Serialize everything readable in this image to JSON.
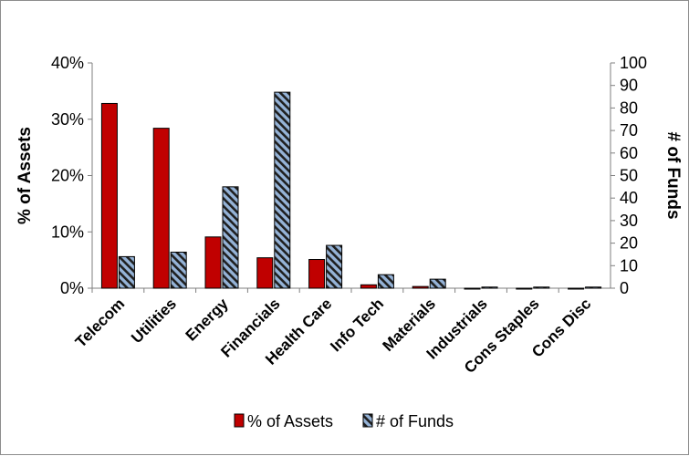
{
  "chart_data": {
    "type": "bar",
    "categories": [
      "Telecom",
      "Utilities",
      "Energy",
      "Financials",
      "Health Care",
      "Info Tech",
      "Materials",
      "Industrials",
      "Cons Staples",
      "Cons Disc"
    ],
    "series": [
      {
        "name": "% of Assets",
        "axis": "left",
        "color": "#c00000",
        "values": [
          32.8,
          28.4,
          9.1,
          5.4,
          5.1,
          0.6,
          0.3,
          0.0,
          0.0,
          0.0
        ]
      },
      {
        "name": "# of Funds",
        "axis": "right",
        "color": "#95b3d7",
        "pattern": "diagonal-hatch",
        "values": [
          14,
          16,
          45,
          87,
          19,
          6,
          4,
          0.5,
          0.5,
          0.5
        ]
      }
    ],
    "left_axis": {
      "label": "% of Assets",
      "range": [
        0,
        40
      ],
      "ticks": [
        0,
        10,
        20,
        30,
        40
      ],
      "tick_labels": [
        "0%",
        "10%",
        "20%",
        "30%",
        "40%"
      ]
    },
    "right_axis": {
      "label": "# of Funds",
      "range": [
        0,
        100
      ],
      "ticks": [
        0,
        10,
        20,
        30,
        40,
        50,
        60,
        70,
        80,
        90,
        100
      ],
      "tick_labels": [
        "0",
        "10",
        "20",
        "30",
        "40",
        "50",
        "60",
        "70",
        "80",
        "90",
        "100"
      ]
    },
    "grid": false,
    "legend": {
      "placement": "bottom",
      "entries": [
        "% of Assets",
        "# of Funds"
      ]
    }
  }
}
